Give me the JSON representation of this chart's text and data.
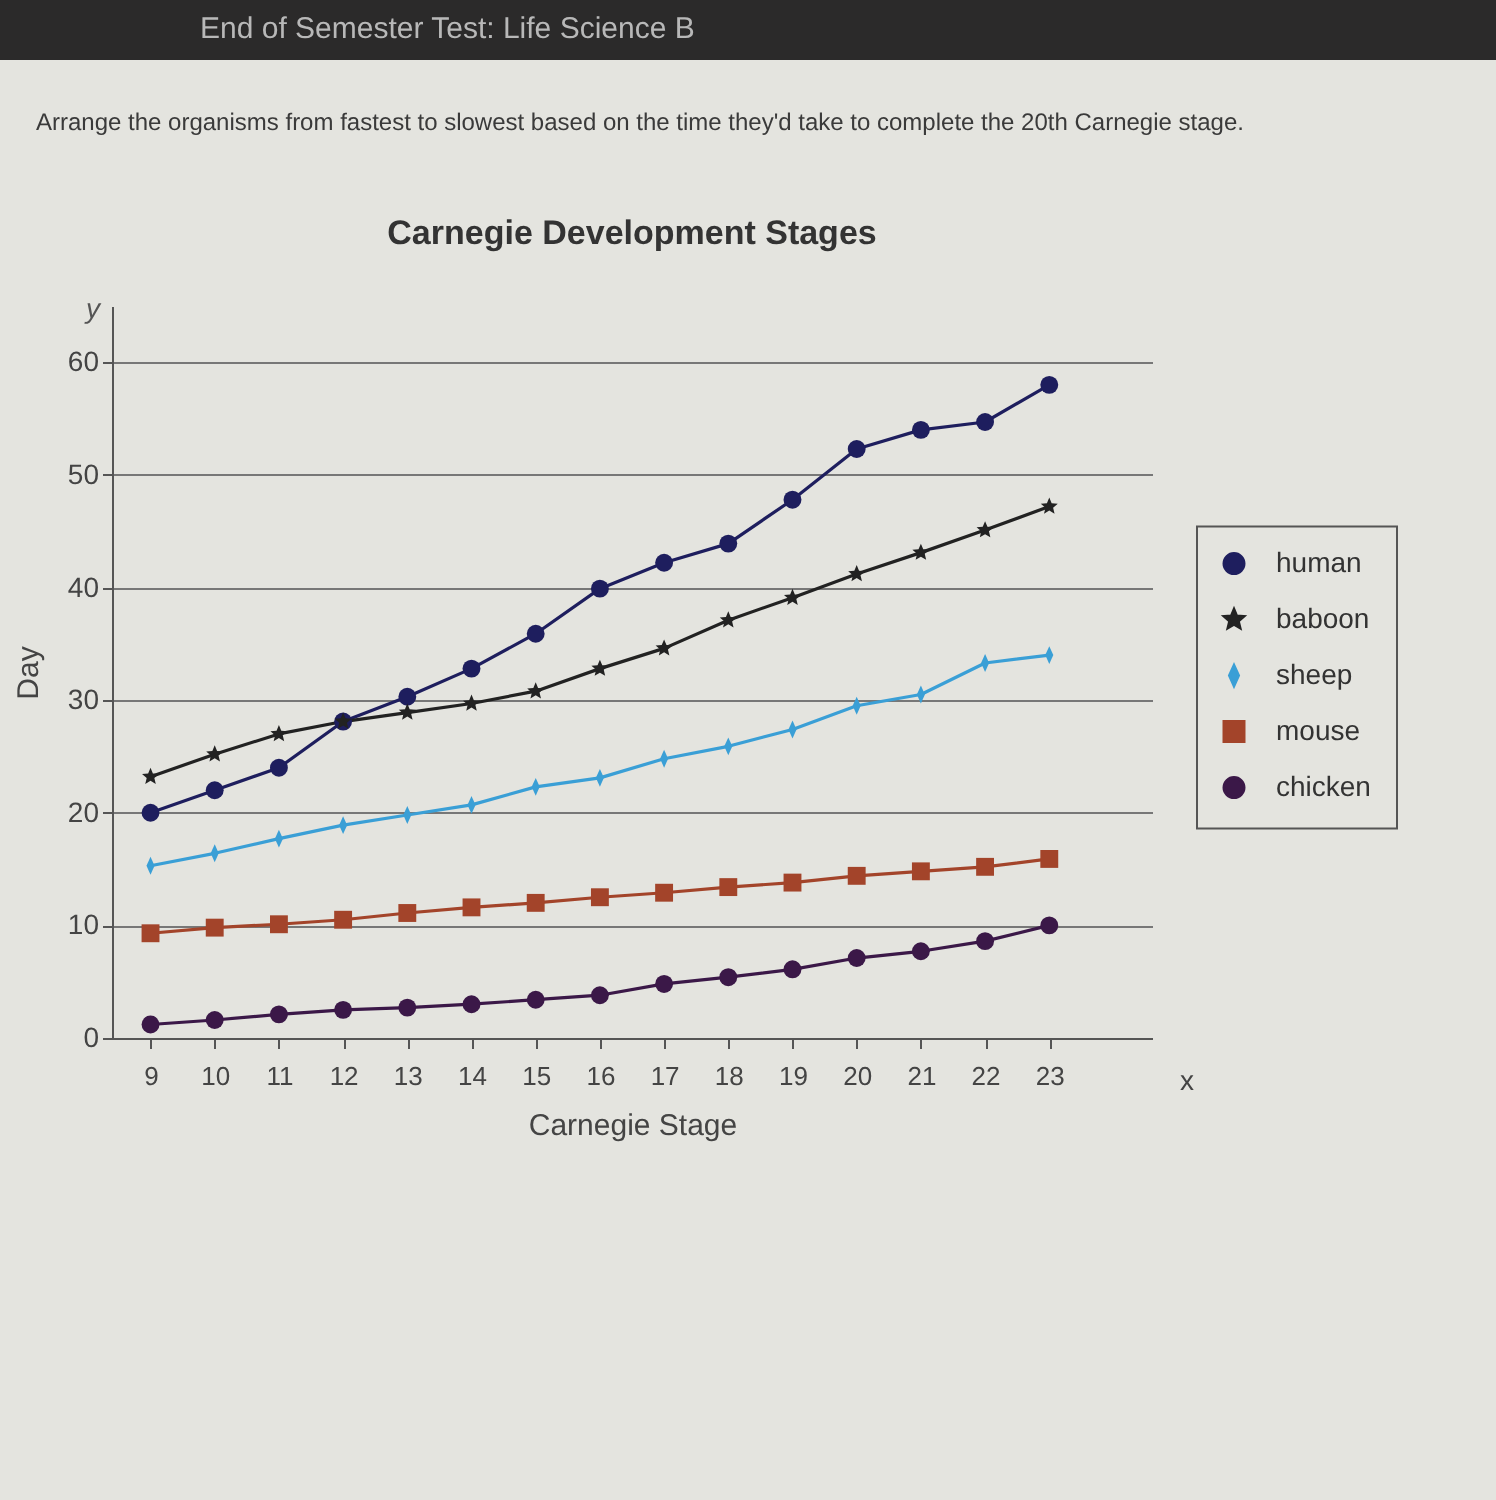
{
  "chart_data": {
    "type": "line",
    "title": "Carnegie Development Stages",
    "xlabel": "Carnegie Stage",
    "ylabel": "Day",
    "annotations": [
      "End of Semester Test: Life Science B",
      "Arrange the organisms from fastest to slowest based on the time they'd take to complete the 20th Carnegie stage.",
      "y",
      "x"
    ],
    "x": [
      9,
      10,
      11,
      12,
      13,
      14,
      15,
      16,
      17,
      18,
      19,
      20,
      21,
      22,
      23
    ],
    "series": [
      {
        "name": "human",
        "color": "#1e1e5e",
        "marker": "circle",
        "values": [
          20,
          22,
          24,
          28.1,
          30.3,
          32.8,
          35.9,
          39.9,
          42.2,
          43.9,
          47.8,
          52.3,
          54,
          54.7,
          58
        ]
      },
      {
        "name": "baboon",
        "color": "#222222",
        "marker": "star",
        "values": [
          23.2,
          25.2,
          27,
          28.1,
          28.9,
          29.7,
          30.8,
          32.8,
          34.6,
          37.1,
          39.1,
          41.2,
          43.1,
          45.1,
          47.2
        ]
      },
      {
        "name": "sheep",
        "color": "#3a9fd6",
        "marker": "diamond",
        "values": [
          15.3,
          16.4,
          17.7,
          18.9,
          19.8,
          20.7,
          22.3,
          23.1,
          24.8,
          25.9,
          27.4,
          29.5,
          30.5,
          33.3,
          34
        ]
      },
      {
        "name": "mouse",
        "color": "#a3442a",
        "marker": "square",
        "values": [
          9.3,
          9.8,
          10.1,
          10.5,
          11.1,
          11.6,
          12,
          12.5,
          12.9,
          13.4,
          13.8,
          14.4,
          14.8,
          15.2,
          15.9
        ]
      },
      {
        "name": "chicken",
        "color": "#3b1848",
        "marker": "circle",
        "values": [
          1.2,
          1.6,
          2.1,
          2.5,
          2.7,
          3,
          3.4,
          3.8,
          4.8,
          5.4,
          6.1,
          7.1,
          7.7,
          8.6,
          10
        ]
      }
    ],
    "xlim": [
      8.4,
      24.6
    ],
    "xticks": [
      9,
      10,
      11,
      12,
      13,
      14,
      15,
      16,
      17,
      18,
      19,
      20,
      21,
      22,
      23
    ],
    "ylim": [
      0,
      65
    ],
    "yticks": [
      0,
      10,
      20,
      30,
      40,
      50,
      60
    ],
    "grid": "y",
    "legend": "right",
    "line_style": "solid"
  }
}
